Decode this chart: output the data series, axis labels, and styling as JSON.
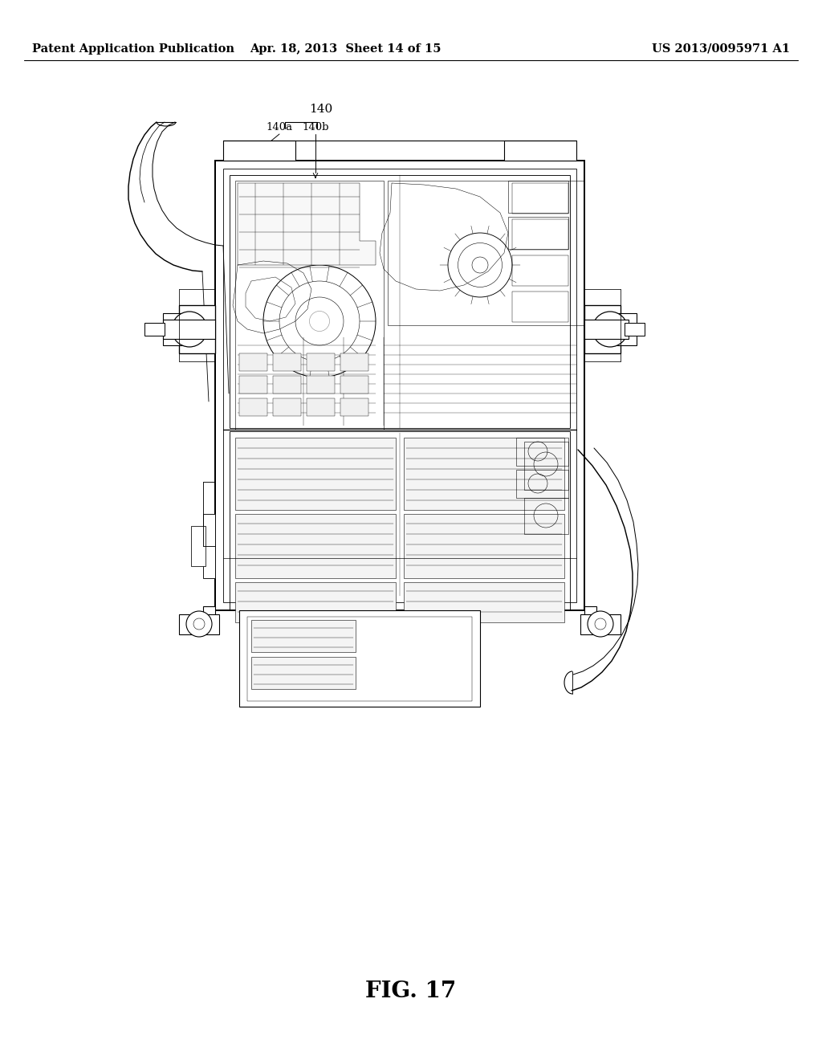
{
  "background_color": "#ffffff",
  "header_left": "Patent Application Publication",
  "header_mid": "Apr. 18, 2013  Sheet 14 of 15",
  "header_right": "US 2013/0095971 A1",
  "header_fontsize": 10.5,
  "figure_label": "FIG. 17",
  "figure_label_fontsize": 20,
  "line_color": "#000000",
  "lw": 0.8,
  "tlw": 0.4
}
